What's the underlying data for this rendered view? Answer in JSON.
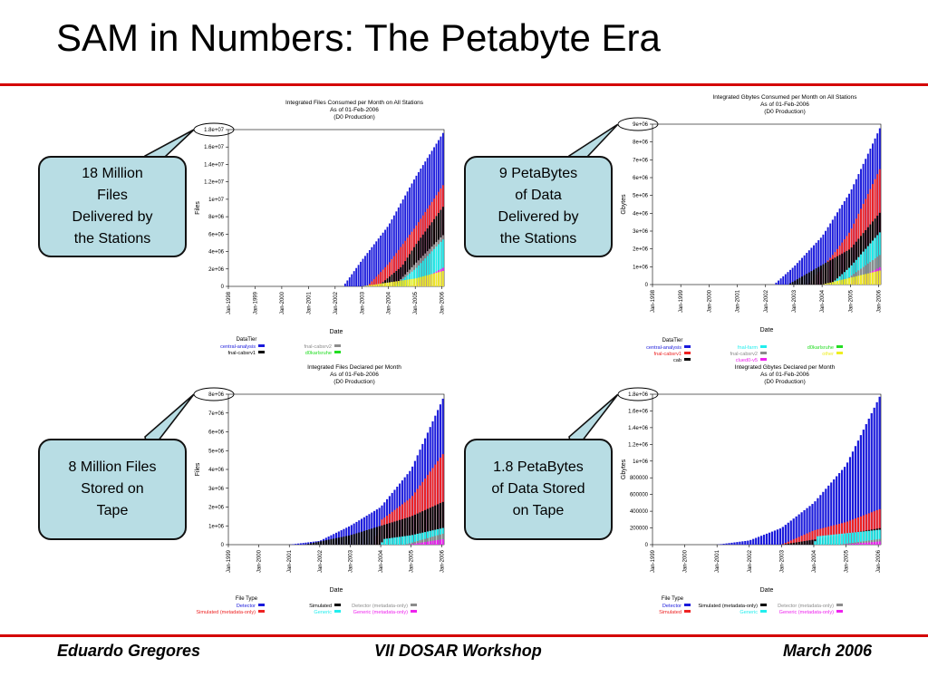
{
  "slide": {
    "title": "SAM in Numbers: The Petabyte Era",
    "accent_color": "#d40000",
    "footer": {
      "left": "Eduardo Gregores",
      "center": "VII DOSAR Workshop",
      "right": "March 2006"
    }
  },
  "callouts": [
    {
      "lines": [
        "18 Million",
        "Files",
        "Delivered by",
        "the Stations"
      ]
    },
    {
      "lines": [
        "9 PetaBytes",
        "of Data",
        "Delivered by",
        "the Stations"
      ]
    },
    {
      "lines": [
        "8 Million Files",
        "Stored on",
        "Tape"
      ]
    },
    {
      "lines": [
        "1.8 PetaBytes",
        "of Data Stored",
        "on Tape"
      ]
    }
  ],
  "chart_data": [
    {
      "type": "bar",
      "stacked": true,
      "title": [
        "Integrated Files Consumed per Month on All Stations",
        "As of 01-Feb-2006",
        "(D0 Production)"
      ],
      "xlabel": "Date",
      "ylabel": "Files",
      "y_ticks": [
        "0",
        "2e+06",
        "4e+06",
        "6e+06",
        "8e+06",
        "1e+07",
        "1.2e+07",
        "1.4e+07",
        "1.6e+07",
        "1.8e+07"
      ],
      "ylim": [
        0,
        18000000
      ],
      "x_ticks": [
        "Jan-1998",
        "Jan-1999",
        "Jan-2000",
        "Jan-2001",
        "Jan-2002",
        "Jan-2003",
        "Jan-2004",
        "Jan-2005",
        "Jan-2006"
      ],
      "x_start": 1998.0,
      "x_end": 2006.08,
      "callout_value": "1.8e+07",
      "legend_title": "DataTier",
      "legend": [
        {
          "name": "central-analysis",
          "color": "#1a1adb"
        },
        {
          "name": "fnal-cabsrv1",
          "color": "#000000"
        },
        {
          "name": "fnal-cabsrv2",
          "color": "#8c8c8c"
        },
        {
          "name": "d0karlsruhe",
          "color": "#22dd22"
        }
      ],
      "series": [
        {
          "name": "top",
          "color": "#1a1adb",
          "endpoints": [
            [
              2002.3,
              0
            ],
            [
              2003.0,
              3000000
            ],
            [
              2004.0,
              7000000
            ],
            [
              2005.0,
              12500000
            ],
            [
              2006.08,
              17800000
            ]
          ]
        },
        {
          "name": "red",
          "color": "#ee2222",
          "endpoints": [
            [
              2003.2,
              0
            ],
            [
              2004.0,
              2600000
            ],
            [
              2005.0,
              6800000
            ],
            [
              2006.08,
              11800000
            ]
          ]
        },
        {
          "name": "black",
          "color": "#000000",
          "endpoints": [
            [
              2003.6,
              0
            ],
            [
              2004.5,
              2300000
            ],
            [
              2005.0,
              4700000
            ],
            [
              2006.08,
              9300000
            ]
          ]
        },
        {
          "name": "gray",
          "color": "#8c8c8c",
          "endpoints": [
            [
              2004.2,
              0
            ],
            [
              2005.0,
              2600000
            ],
            [
              2006.08,
              6000000
            ]
          ]
        },
        {
          "name": "cyan",
          "color": "#22eeee",
          "endpoints": [
            [
              2004.2,
              0
            ],
            [
              2005.0,
              2000000
            ],
            [
              2006.08,
              5500000
            ]
          ]
        },
        {
          "name": "magenta",
          "color": "#ee22ee",
          "endpoints": [
            [
              2004.8,
              0
            ],
            [
              2006.08,
              2200000
            ]
          ]
        },
        {
          "name": "yellow",
          "color": "#eeee22",
          "endpoints": [
            [
              2003.0,
              0
            ],
            [
              2005.0,
              900000
            ],
            [
              2006.08,
              1800000
            ]
          ]
        }
      ]
    },
    {
      "type": "bar",
      "stacked": true,
      "title": [
        "Integrated Gbytes Consumed per Month on All Stations",
        "As of 01-Feb-2006",
        "(D0 Production)"
      ],
      "xlabel": "Date",
      "ylabel": "Gbytes",
      "y_ticks": [
        "0",
        "1e+06",
        "2e+06",
        "3e+06",
        "4e+06",
        "5e+06",
        "6e+06",
        "7e+06",
        "8e+06",
        "9e+06"
      ],
      "ylim": [
        0,
        9000000
      ],
      "x_ticks": [
        "Jan-1998",
        "Jan-1999",
        "Jan-2000",
        "Jan-2001",
        "Jan-2002",
        "Jan-2003",
        "Jan-2004",
        "Jan-2005",
        "Jan-2006"
      ],
      "x_start": 1998.0,
      "x_end": 2006.08,
      "callout_value": "9e+06",
      "legend_title": "DataTier",
      "legend": [
        {
          "name": "central-analysis",
          "color": "#1a1adb"
        },
        {
          "name": "fnal-cabsrv1",
          "color": "#ee2222"
        },
        {
          "name": "cab",
          "color": "#000000"
        },
        {
          "name": "fnal-farm",
          "color": "#22eeee"
        },
        {
          "name": "fnal-cabsrv2",
          "color": "#8c8c8c"
        },
        {
          "name": "clued0-v5",
          "color": "#ee22ee"
        },
        {
          "name": "d0karlsruhe",
          "color": "#22dd22"
        },
        {
          "name": "other",
          "color": "#eeee22"
        }
      ],
      "series": [
        {
          "name": "top",
          "color": "#1a1adb",
          "endpoints": [
            [
              2002.3,
              0
            ],
            [
              2003.0,
              1000000
            ],
            [
              2004.0,
              2700000
            ],
            [
              2005.0,
              5200000
            ],
            [
              2006.08,
              8900000
            ]
          ]
        },
        {
          "name": "red",
          "color": "#ee2222",
          "endpoints": [
            [
              2003.5,
              0
            ],
            [
              2004.5,
              1900000
            ],
            [
              2005.0,
              3000000
            ],
            [
              2006.08,
              6600000
            ]
          ]
        },
        {
          "name": "black",
          "color": "#000000",
          "endpoints": [
            [
              2002.8,
              0
            ],
            [
              2004.0,
              1100000
            ],
            [
              2005.0,
              2000000
            ],
            [
              2006.08,
              4100000
            ]
          ]
        },
        {
          "name": "cyan",
          "color": "#22eeee",
          "endpoints": [
            [
              2004.3,
              0
            ],
            [
              2005.0,
              1000000
            ],
            [
              2006.08,
              3000000
            ]
          ]
        },
        {
          "name": "gray",
          "color": "#8c8c8c",
          "endpoints": [
            [
              2004.6,
              0
            ],
            [
              2006.08,
              1700000
            ]
          ]
        },
        {
          "name": "magenta",
          "color": "#ee22ee",
          "endpoints": [
            [
              2004.9,
              0
            ],
            [
              2006.08,
              1000000
            ]
          ]
        },
        {
          "name": "yellow",
          "color": "#eeee22",
          "endpoints": [
            [
              2004.0,
              0
            ],
            [
              2006.08,
              800000
            ]
          ]
        }
      ]
    },
    {
      "type": "bar",
      "stacked": true,
      "title": [
        "Integrated Files Declared per Month",
        "As of 01-Feb-2006",
        "(D0 Production)"
      ],
      "xlabel": "Date",
      "ylabel": "Files",
      "y_ticks": [
        "0",
        "1e+06",
        "2e+06",
        "3e+06",
        "4e+06",
        "5e+06",
        "6e+06",
        "7e+06",
        "8e+06"
      ],
      "ylim": [
        0,
        8000000
      ],
      "x_ticks": [
        "Jan-1999",
        "Jan-2000",
        "Jan-2001",
        "Jan-2002",
        "Jan-2003",
        "Jan-2004",
        "Jan-2005",
        "Jan-2006"
      ],
      "x_start": 1999.0,
      "x_end": 2006.08,
      "callout_value": "8e+06",
      "legend_title": "File Type",
      "legend": [
        {
          "name": "Detector",
          "color": "#1a1adb"
        },
        {
          "name": "Simulated (metadata-only)",
          "color": "#ee2222"
        },
        {
          "name": "Simulated",
          "color": "#000000"
        },
        {
          "name": "Generic",
          "color": "#22eeee"
        },
        {
          "name": "Detector (metadata-only)",
          "color": "#8c8c8c"
        },
        {
          "name": "Generic (metadata-only)",
          "color": "#ee22ee"
        }
      ],
      "series": [
        {
          "name": "Detector",
          "color": "#1a1adb",
          "endpoints": [
            [
              2001.0,
              0
            ],
            [
              2002.0,
              200000
            ],
            [
              2003.0,
              1000000
            ],
            [
              2004.0,
              2000000
            ],
            [
              2005.0,
              4000000
            ],
            [
              2006.08,
              7900000
            ]
          ]
        },
        {
          "name": "Simulated (metadata-only)",
          "color": "#ee2222",
          "endpoints": [
            [
              2003.8,
              0
            ],
            [
              2004.01,
              1300000
            ],
            [
              2005.0,
              2500000
            ],
            [
              2006.08,
              4900000
            ]
          ]
        },
        {
          "name": "Simulated",
          "color": "#000000",
          "endpoints": [
            [
              2001.5,
              0
            ],
            [
              2003.0,
              500000
            ],
            [
              2004.0,
              1000000
            ],
            [
              2005.0,
              1500000
            ],
            [
              2006.08,
              2300000
            ]
          ]
        },
        {
          "name": "Generic",
          "color": "#22eeee",
          "endpoints": [
            [
              2004.0,
              0
            ],
            [
              2004.1,
              300000
            ],
            [
              2005.0,
              500000
            ],
            [
              2006.08,
              900000
            ]
          ]
        },
        {
          "name": "Detector (metadata-only)",
          "color": "#8c8c8c",
          "endpoints": [
            [
              2004.8,
              0
            ],
            [
              2006.08,
              600000
            ]
          ]
        },
        {
          "name": "Generic (metadata-only)",
          "color": "#ee22ee",
          "endpoints": [
            [
              2004.9,
              0
            ],
            [
              2006.08,
              300000
            ]
          ]
        }
      ]
    },
    {
      "type": "bar",
      "stacked": true,
      "title": [
        "Integrated Gbytes Declared per Month",
        "As of 01-Feb-2006",
        "(D0 Production)"
      ],
      "xlabel": "Date",
      "ylabel": "Gbytes",
      "y_ticks": [
        "0",
        "200000",
        "400000",
        "600000",
        "800000",
        "1e+06",
        "1.2e+06",
        "1.4e+06",
        "1.6e+06",
        "1.8e+06"
      ],
      "ylim": [
        0,
        1800000
      ],
      "x_ticks": [
        "Jan-1999",
        "Jan-2000",
        "Jan-2001",
        "Jan-2002",
        "Jan-2003",
        "Jan-2004",
        "Jan-2005",
        "Jan-2006"
      ],
      "x_start": 1999.0,
      "x_end": 2006.08,
      "callout_value": "1.8e+06",
      "legend_title": "File Type",
      "legend": [
        {
          "name": "Detector",
          "color": "#1a1adb"
        },
        {
          "name": "Simulated",
          "color": "#ee2222"
        },
        {
          "name": "Simulated (metadata-only)",
          "color": "#000000"
        },
        {
          "name": "Generic",
          "color": "#22eeee"
        },
        {
          "name": "Detector (metadata-only)",
          "color": "#8c8c8c"
        },
        {
          "name": "Generic (metadata-only)",
          "color": "#ee22ee"
        }
      ],
      "series": [
        {
          "name": "Detector",
          "color": "#1a1adb",
          "endpoints": [
            [
              2001.0,
              0
            ],
            [
              2002.0,
              50000
            ],
            [
              2003.0,
              200000
            ],
            [
              2004.0,
              500000
            ],
            [
              2005.0,
              950000
            ],
            [
              2006.08,
              1800000
            ]
          ]
        },
        {
          "name": "Simulated",
          "color": "#ee2222",
          "endpoints": [
            [
              2003.0,
              0
            ],
            [
              2004.0,
              170000
            ],
            [
              2005.0,
              270000
            ],
            [
              2006.08,
              430000
            ]
          ]
        },
        {
          "name": "Simulated (metadata-only)",
          "color": "#000000",
          "endpoints": [
            [
              2003.0,
              0
            ],
            [
              2004.0,
              60000
            ],
            [
              2006.08,
              200000
            ]
          ]
        },
        {
          "name": "Generic",
          "color": "#22eeee",
          "endpoints": [
            [
              2004.0,
              0
            ],
            [
              2004.1,
              100000
            ],
            [
              2006.08,
              180000
            ]
          ]
        },
        {
          "name": "Detector (metadata-only)",
          "color": "#8c8c8c",
          "endpoints": [
            [
              2004.8,
              0
            ],
            [
              2006.08,
              70000
            ]
          ]
        },
        {
          "name": "Generic (metadata-only)",
          "color": "#ee22ee",
          "endpoints": [
            [
              2004.9,
              0
            ],
            [
              2006.08,
              40000
            ]
          ]
        }
      ]
    }
  ]
}
